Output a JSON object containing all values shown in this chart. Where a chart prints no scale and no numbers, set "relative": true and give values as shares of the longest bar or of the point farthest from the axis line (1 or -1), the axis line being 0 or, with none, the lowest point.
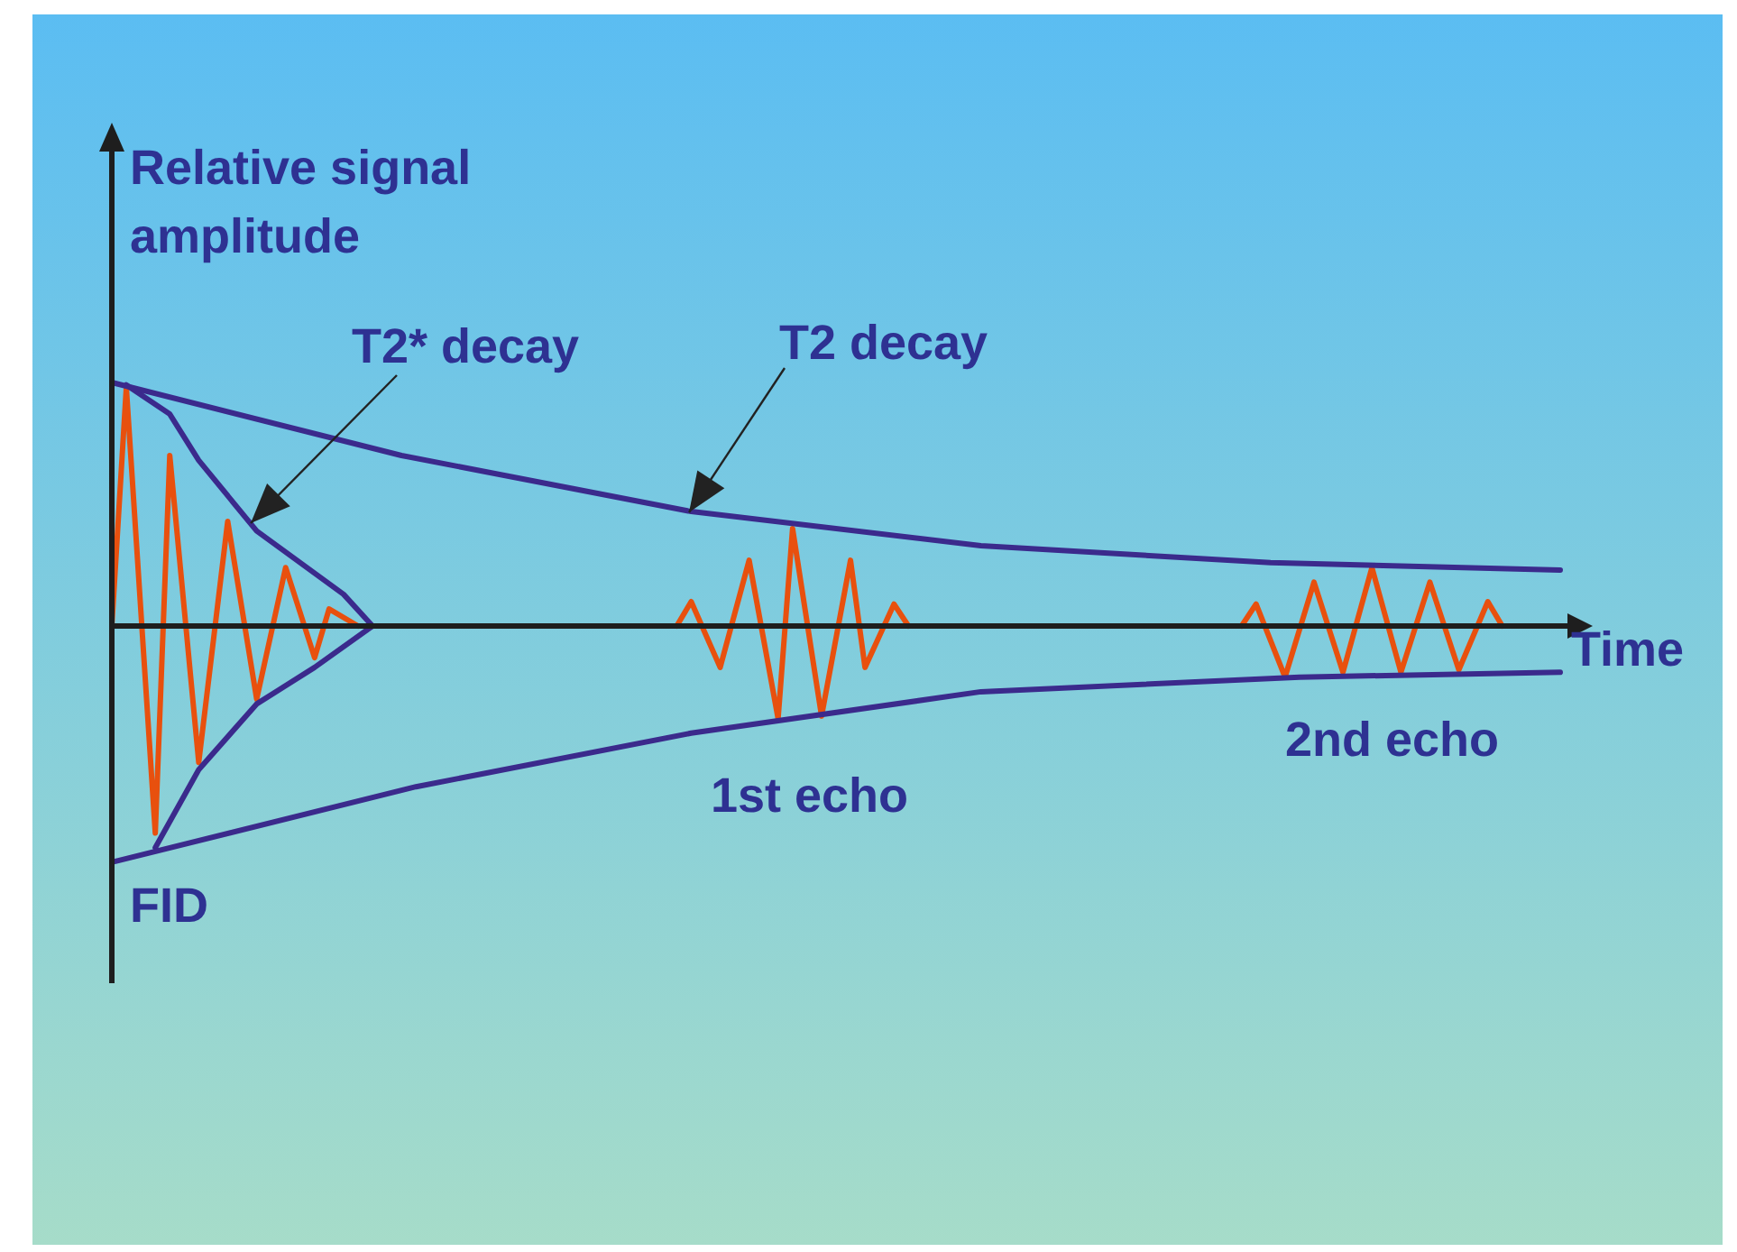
{
  "chart_data": {
    "type": "line",
    "relative": true,
    "tick_labels": false,
    "marker": "none",
    "line_style": "solid",
    "ylabel": "Relative signal amplitude",
    "xlabel": "Time",
    "annotations": [
      "T2* decay",
      "T2 decay",
      "1st echo",
      "2nd echo",
      "FID"
    ],
    "categories": [
      null,
      null,
      null,
      null,
      null,
      null,
      null,
      null,
      null,
      null,
      null,
      null,
      null,
      null,
      null,
      null,
      null,
      null,
      null,
      null,
      null,
      null,
      null,
      null,
      null,
      null,
      null,
      null,
      null,
      null,
      null,
      null,
      null,
      null,
      null,
      null,
      null,
      null,
      null,
      null,
      null,
      null,
      null,
      null,
      null,
      null,
      null,
      null,
      null,
      null,
      null,
      null,
      null,
      null,
      null,
      null,
      null,
      null,
      null,
      null,
      null,
      null,
      null,
      null,
      null,
      null,
      null,
      null,
      null,
      null,
      null,
      null,
      null,
      null,
      null,
      null,
      null,
      null,
      null,
      null,
      null,
      null,
      null,
      null,
      null,
      null,
      null,
      null,
      null,
      null,
      null,
      null,
      null,
      null,
      null,
      null,
      null,
      null,
      null,
      null,
      null
    ],
    "series": [
      {
        "color": "#3b2a8c",
        "values": [
          1.0,
          null,
          null,
          null,
          null,
          null,
          null,
          null,
          null,
          null,
          null,
          null,
          null,
          null,
          null,
          null,
          null,
          null,
          null,
          null,
          0.7,
          null,
          null,
          null,
          null,
          null,
          null,
          null,
          null,
          null,
          null,
          null,
          null,
          null,
          null,
          null,
          null,
          null,
          null,
          null,
          0.47,
          null,
          null,
          null,
          null,
          null,
          null,
          null,
          null,
          null,
          null,
          null,
          null,
          null,
          null,
          null,
          null,
          null,
          null,
          null,
          0.33,
          null,
          null,
          null,
          null,
          null,
          null,
          null,
          null,
          null,
          null,
          null,
          null,
          null,
          null,
          null,
          null,
          null,
          null,
          null,
          0.26,
          null,
          null,
          null,
          null,
          null,
          null,
          null,
          null,
          null,
          null,
          null,
          null,
          null,
          null,
          null,
          null,
          null,
          null,
          null,
          0.23
        ]
      },
      {
        "color": "#3b2a8c",
        "values": [
          -0.97,
          null,
          null,
          null,
          null,
          null,
          null,
          null,
          null,
          null,
          null,
          null,
          null,
          null,
          null,
          null,
          null,
          null,
          null,
          null,
          null,
          -0.66,
          null,
          null,
          null,
          null,
          null,
          null,
          null,
          null,
          null,
          null,
          null,
          null,
          null,
          null,
          null,
          null,
          null,
          null,
          -0.44,
          null,
          null,
          null,
          null,
          null,
          null,
          null,
          null,
          null,
          null,
          null,
          null,
          null,
          null,
          null,
          null,
          null,
          null,
          null,
          -0.27,
          null,
          null,
          null,
          null,
          null,
          null,
          null,
          null,
          null,
          null,
          null,
          null,
          null,
          null,
          null,
          null,
          null,
          null,
          null,
          null,
          null,
          -0.21,
          null,
          null,
          null,
          null,
          null,
          null,
          null,
          null,
          null,
          null,
          null,
          null,
          null,
          null,
          null,
          null,
          null,
          -0.19
        ]
      },
      {
        "color": "#3b2a8c",
        "values": [
          null,
          0.99,
          null,
          null,
          0.87,
          null,
          0.68,
          null,
          null,
          null,
          0.39,
          null,
          null,
          null,
          null,
          null,
          0.13,
          null,
          0,
          null,
          null,
          null,
          null,
          null,
          null,
          null,
          null,
          null,
          null,
          null,
          null,
          null,
          null,
          null,
          null,
          null,
          null,
          null,
          null,
          null,
          null,
          null,
          null,
          null,
          null,
          null,
          null,
          null,
          null,
          null,
          null,
          null,
          null,
          null,
          null,
          null,
          null,
          null,
          null,
          null,
          null,
          null,
          null,
          null,
          null,
          null,
          null,
          null,
          null,
          null,
          null,
          null,
          null,
          null,
          null,
          null,
          null,
          null,
          null,
          null,
          null,
          null,
          null,
          null,
          null,
          null,
          null,
          null,
          null,
          null,
          null,
          null,
          null,
          null,
          null,
          null,
          null,
          null,
          null,
          null,
          null
        ]
      },
      {
        "color": "#3b2a8c",
        "values": [
          null,
          null,
          null,
          -0.91,
          null,
          null,
          -0.59,
          null,
          null,
          null,
          -0.32,
          null,
          null,
          null,
          -0.17,
          null,
          null,
          null,
          0,
          null,
          null,
          null,
          null,
          null,
          null,
          null,
          null,
          null,
          null,
          null,
          null,
          null,
          null,
          null,
          null,
          null,
          null,
          null,
          null,
          null,
          null,
          null,
          null,
          null,
          null,
          null,
          null,
          null,
          null,
          null,
          null,
          null,
          null,
          null,
          null,
          null,
          null,
          null,
          null,
          null,
          null,
          null,
          null,
          null,
          null,
          null,
          null,
          null,
          null,
          null,
          null,
          null,
          null,
          null,
          null,
          null,
          null,
          null,
          null,
          null,
          null,
          null,
          null,
          null,
          null,
          null,
          null,
          null,
          null,
          null,
          null,
          null,
          null,
          null,
          null,
          null,
          null,
          null,
          null,
          null,
          null
        ]
      },
      {
        "color": "#e8500e",
        "values": [
          0,
          0.98,
          null,
          -0.85,
          0.7,
          null,
          -0.56,
          null,
          0.43,
          null,
          -0.3,
          null,
          0.24,
          null,
          -0.13,
          0.07,
          null,
          0,
          null,
          null,
          null,
          null,
          null,
          null,
          null,
          null,
          null,
          null,
          null,
          null,
          null,
          null,
          null,
          null,
          null,
          null,
          null,
          null,
          null,
          null,
          null,
          null,
          null,
          null,
          null,
          null,
          null,
          null,
          null,
          null,
          null,
          null,
          null,
          null,
          null,
          null,
          null,
          null,
          null,
          null,
          null,
          null,
          null,
          null,
          null,
          null,
          null,
          null,
          null,
          null,
          null,
          null,
          null,
          null,
          null,
          null,
          null,
          null,
          null,
          null,
          null,
          null,
          null,
          null,
          null,
          null,
          null,
          null,
          null,
          null,
          null,
          null,
          null,
          null,
          null,
          null,
          null,
          null,
          null,
          null,
          null
        ]
      },
      {
        "color": "#e8500e",
        "values": [
          null,
          null,
          null,
          null,
          null,
          null,
          null,
          null,
          null,
          null,
          null,
          null,
          null,
          null,
          null,
          null,
          null,
          null,
          null,
          null,
          null,
          null,
          null,
          null,
          null,
          null,
          null,
          null,
          null,
          null,
          null,
          null,
          null,
          null,
          null,
          null,
          null,
          null,
          null,
          0,
          0.1,
          null,
          -0.17,
          null,
          0.27,
          null,
          -0.38,
          0.4,
          null,
          -0.37,
          null,
          0.27,
          -0.17,
          null,
          0.09,
          0,
          null,
          null,
          null,
          null,
          null,
          null,
          null,
          null,
          null,
          null,
          null,
          null,
          null,
          null,
          null,
          null,
          null,
          null,
          null,
          null,
          null,
          null,
          null,
          null,
          null,
          null,
          null,
          null,
          null,
          null,
          null,
          null,
          null,
          null,
          null,
          null,
          null,
          null,
          null,
          null,
          null,
          null,
          null,
          null,
          null
        ]
      },
      {
        "color": "#e8500e",
        "values": [
          null,
          null,
          null,
          null,
          null,
          null,
          null,
          null,
          null,
          null,
          null,
          null,
          null,
          null,
          null,
          null,
          null,
          null,
          null,
          null,
          null,
          null,
          null,
          null,
          null,
          null,
          null,
          null,
          null,
          null,
          null,
          null,
          null,
          null,
          null,
          null,
          null,
          null,
          null,
          null,
          null,
          null,
          null,
          null,
          null,
          null,
          null,
          null,
          null,
          null,
          null,
          null,
          null,
          null,
          null,
          null,
          null,
          null,
          null,
          null,
          null,
          null,
          null,
          null,
          null,
          null,
          null,
          null,
          null,
          null,
          null,
          null,
          null,
          null,
          null,
          null,
          null,
          null,
          0,
          0.09,
          null,
          -0.21,
          null,
          0.18,
          null,
          -0.19,
          null,
          0.24,
          null,
          -0.19,
          null,
          0.18,
          null,
          -0.18,
          null,
          0.1,
          0,
          null,
          null,
          null,
          null
        ]
      }
    ]
  }
}
